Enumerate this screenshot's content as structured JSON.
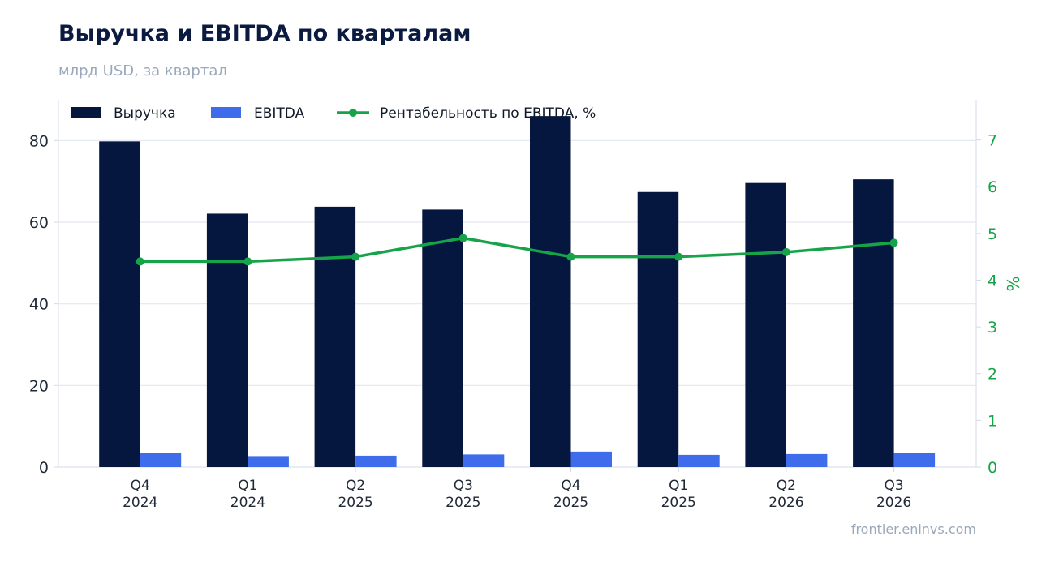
{
  "chart_data": {
    "type": "bar",
    "title": "Выручка и EBITDA по кварталам",
    "subtitle": "млрд USD, за квартал",
    "categories": [
      [
        "Q4",
        "2024"
      ],
      [
        "Q1",
        "2024"
      ],
      [
        "Q2",
        "2025"
      ],
      [
        "Q3",
        "2025"
      ],
      [
        "Q4",
        "2025"
      ],
      [
        "Q1",
        "2025"
      ],
      [
        "Q2",
        "2026"
      ],
      [
        "Q3",
        "2026"
      ]
    ],
    "series": [
      {
        "name": "Выручка",
        "type": "bar",
        "axis": "left",
        "color": "#06173f",
        "values": [
          79.8,
          62.1,
          63.8,
          63.1,
          86.0,
          67.4,
          69.6,
          70.5
        ]
      },
      {
        "name": "EBITDA",
        "type": "bar",
        "axis": "left",
        "color": "#3e6cea",
        "values": [
          3.5,
          2.7,
          2.8,
          3.1,
          3.8,
          3.0,
          3.2,
          3.4
        ]
      },
      {
        "name": "Рентабельность по EBITDA, %",
        "type": "line",
        "axis": "right",
        "color": "#16a34a",
        "values": [
          4.4,
          4.4,
          4.5,
          4.9,
          4.5,
          4.5,
          4.6,
          4.8
        ]
      }
    ],
    "y_left": {
      "ylim": [
        0,
        90
      ],
      "ticks": [
        0,
        20,
        40,
        60,
        80
      ],
      "label": ""
    },
    "y_right": {
      "ylim": [
        0,
        7.86
      ],
      "ticks": [
        0,
        1,
        2,
        3,
        4,
        5,
        6,
        7
      ],
      "label": "%",
      "color": "#16a34a"
    },
    "grid": true,
    "legend": "top-left"
  },
  "source": "frontier.eninvs.com"
}
